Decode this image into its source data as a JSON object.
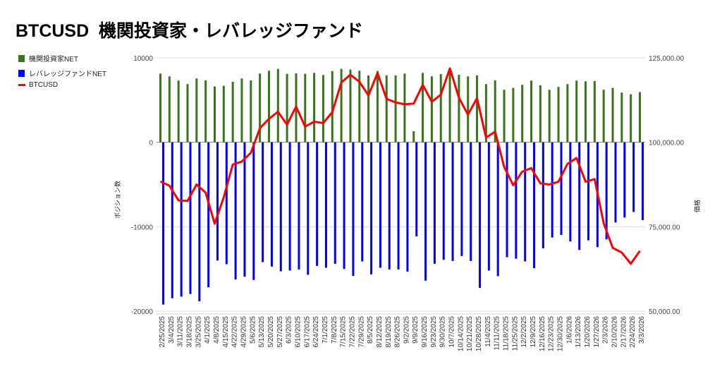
{
  "title": "BTCUSD  機関投資家・レバレッジファンド",
  "colors": {
    "institutional": "#38761d",
    "leveraged": "#0000ff",
    "btc": "#ff0000"
  },
  "chart_data": {
    "type": "bar+line",
    "title": "BTCUSD  機関投資家・レバレッジファンド",
    "ylabel_left": "ポジション数",
    "ylabel_right": "価格",
    "ylim_left": [
      -20000,
      10000
    ],
    "ylim_right": [
      50000,
      125000
    ],
    "yticks_left": [
      "10000",
      "0",
      "-10000",
      "-20000"
    ],
    "yticks_right": [
      "125,000.00",
      "100,000.00",
      "75,000.00",
      "50,000.00"
    ],
    "legend_position": "top-left",
    "grid": true,
    "categories": [
      "2/25/2025",
      "3/4/2025",
      "3/11/2025",
      "3/18/2025",
      "3/25/2025",
      "4/1/2025",
      "4/8/2025",
      "4/15/2025",
      "4/22/2025",
      "4/29/2025",
      "5/6/2025",
      "5/13/2025",
      "5/20/2025",
      "5/27/2025",
      "6/3/2025",
      "6/10/2025",
      "6/17/2025",
      "6/24/2025",
      "7/1/2025",
      "7/8/2025",
      "7/15/2025",
      "7/22/2025",
      "7/29/2025",
      "8/5/2025",
      "8/12/2025",
      "8/19/2025",
      "8/26/2025",
      "9/2/2025",
      "9/9/2025",
      "9/16/2025",
      "9/23/2025",
      "9/30/2025",
      "10/7/2025",
      "10/14/2025",
      "10/21/2025",
      "10/28/2025",
      "11/4/2025",
      "11/11/2025",
      "11/18/2025",
      "11/25/2025",
      "12/2/2025",
      "12/9/2025",
      "12/16/2025",
      "12/23/2025",
      "12/30/2025",
      "1/6/2026",
      "1/13/2026",
      "1/20/2026",
      "1/27/2026",
      "2/3/2026",
      "2/10/2026",
      "2/17/2026",
      "2/24/2026",
      "3/3/2026"
    ],
    "series": [
      {
        "name": "機関投資家NET",
        "axis": "left",
        "type": "bar",
        "values": [
          8140,
          7800,
          7310,
          6890,
          7560,
          7330,
          6610,
          6690,
          7170,
          7560,
          7330,
          8140,
          8470,
          8690,
          8110,
          8170,
          8110,
          8220,
          7970,
          8440,
          8690,
          8610,
          8470,
          7920,
          8440,
          7920,
          7920,
          8140,
          1310,
          8220,
          7810,
          8080,
          8560,
          8000,
          7810,
          7920,
          6890,
          7330,
          6220,
          6440,
          6810,
          7310,
          6750,
          6220,
          6560,
          6890,
          7310,
          7220,
          7250,
          6220,
          6440,
          5890,
          5690,
          5940
        ]
      },
      {
        "name": "レバレッジファンドNET",
        "axis": "left",
        "type": "bar",
        "values": [
          -19220,
          -18470,
          -18280,
          -17970,
          -18830,
          -17170,
          -14000,
          -14440,
          -16250,
          -15920,
          -16310,
          -14190,
          -14720,
          -15280,
          -15190,
          -15060,
          -15690,
          -14640,
          -14860,
          -14390,
          -15000,
          -15830,
          -14110,
          -15640,
          -14860,
          -15060,
          -15060,
          -15310,
          -11140,
          -16390,
          -14390,
          -13920,
          -14060,
          -13470,
          -14060,
          -17250,
          -15190,
          -15860,
          -13610,
          -13780,
          -14110,
          -14920,
          -12560,
          -11280,
          -10970,
          -11750,
          -12750,
          -11610,
          -12420,
          -11500,
          -9500,
          -8920,
          -8250,
          -9220
        ]
      },
      {
        "name": "BTCUSD",
        "axis": "right",
        "type": "line",
        "values": [
          88400,
          87150,
          82780,
          82640,
          87500,
          85070,
          75900,
          83680,
          93400,
          94300,
          96880,
          104170,
          106940,
          109030,
          105210,
          110560,
          104650,
          106110,
          105690,
          108890,
          117710,
          120000,
          117920,
          113890,
          120490,
          112850,
          111810,
          111250,
          111460,
          117010,
          112010,
          114100,
          121880,
          113190,
          108190,
          113060,
          101390,
          103130,
          92710,
          87290,
          91320,
          92360,
          87850,
          87500,
          88330,
          93610,
          95350,
          88330,
          89100,
          76040,
          68750,
          67360,
          64030,
          67850
        ]
      }
    ]
  }
}
